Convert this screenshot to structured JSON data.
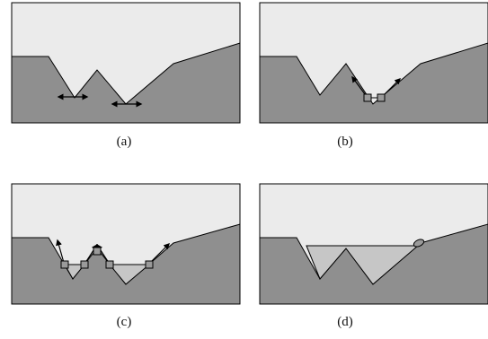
{
  "figure": {
    "panels": [
      {
        "id": "a",
        "caption": "(a)"
      },
      {
        "id": "b",
        "caption": "(b)"
      },
      {
        "id": "c",
        "caption": "(c)"
      },
      {
        "id": "d",
        "caption": "(d)"
      }
    ]
  },
  "colors": {
    "sky": "#ebebeb",
    "ground": "#8f8f8f",
    "water": "#c6c6c6",
    "marker": "#9a9a9a",
    "stroke": "#000000"
  }
}
